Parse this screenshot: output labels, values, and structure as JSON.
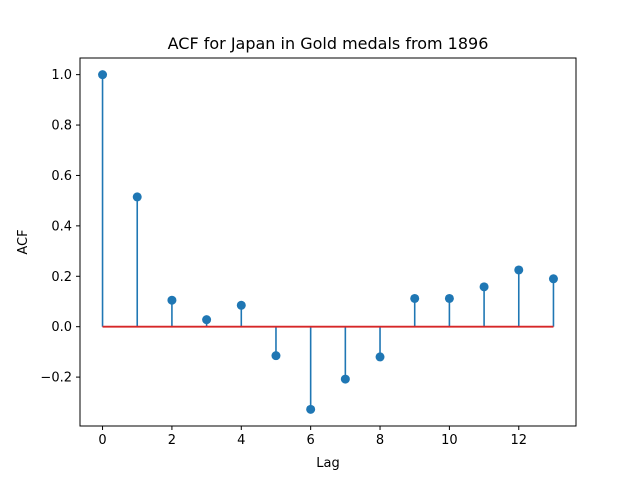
{
  "chart_data": {
    "type": "stem",
    "title": "ACF for Japan in Gold medals from 1896",
    "xlabel": "Lag",
    "ylabel": "ACF",
    "x": [
      0,
      1,
      2,
      3,
      4,
      5,
      6,
      7,
      8,
      9,
      10,
      11,
      12,
      13
    ],
    "values": [
      1.0,
      0.515,
      0.105,
      0.028,
      0.085,
      -0.115,
      -0.328,
      -0.208,
      -0.12,
      0.112,
      0.112,
      0.158,
      0.225,
      0.19
    ],
    "xlim": [
      -0.65,
      13.65
    ],
    "ylim": [
      -0.394,
      1.066
    ],
    "xticks": [
      0,
      2,
      4,
      6,
      8,
      10,
      12
    ],
    "xtick_labels": [
      "0",
      "2",
      "4",
      "6",
      "8",
      "10",
      "12"
    ],
    "yticks": [
      -0.2,
      0.0,
      0.2,
      0.4,
      0.6,
      0.8,
      1.0
    ],
    "ytick_labels": [
      "−0.2",
      "0.0",
      "0.2",
      "0.4",
      "0.6",
      "0.8",
      "1.0"
    ],
    "baseline": 0,
    "grid": false,
    "colors": {
      "marker": "#1f77b4",
      "stem": "#1f77b4",
      "baseline": "#d62728",
      "frame": "#000000"
    }
  }
}
